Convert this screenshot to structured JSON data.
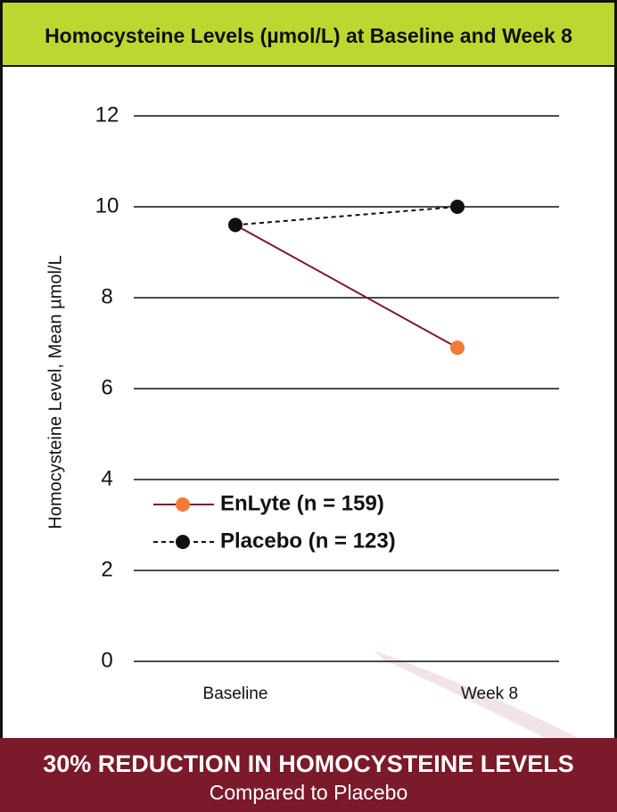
{
  "chart_data": {
    "type": "line",
    "title": "Homocysteine Levels (µmol/L) at Baseline and Week 8",
    "y_label": "Homocysteine Level, Mean µmol/L",
    "categories": [
      "Baseline",
      "Week 8"
    ],
    "series": [
      {
        "name": "EnLyte (n = 159)",
        "color": "#7b1a2a",
        "marker_color": "#f47a3a",
        "line_style": "solid",
        "values": [
          9.6,
          6.9
        ]
      },
      {
        "name": "Placebo (n = 123)",
        "color": "#111111",
        "marker_color": "#111111",
        "line_style": "dashed",
        "values": [
          9.6,
          10.0
        ]
      }
    ],
    "ylim": [
      0,
      12
    ],
    "yticks": [
      0,
      2,
      4,
      6,
      8,
      10,
      12
    ],
    "grid": true,
    "legend": "lower-left"
  },
  "footer": {
    "headline": "30% REDUCTION IN HOMOCYSTEINE LEVELS",
    "subline": "Compared to Placebo"
  }
}
